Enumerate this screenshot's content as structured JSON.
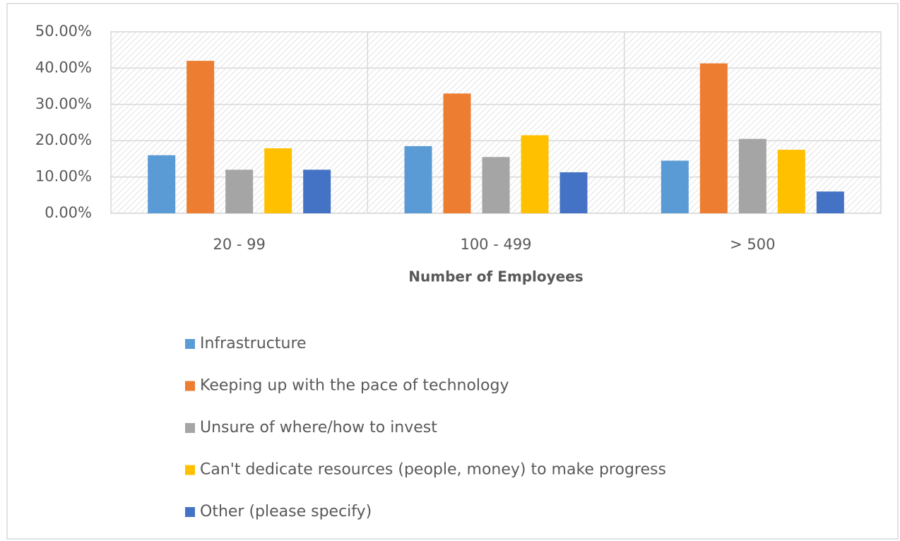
{
  "chart_data": {
    "type": "bar",
    "x_label": "Number of Employees",
    "categories": [
      "20 - 99",
      "100 - 499",
      "> 500"
    ],
    "series": [
      {
        "name": "Infrastructure",
        "color": "#5b9bd5",
        "values": [
          16.0,
          18.5,
          14.5
        ]
      },
      {
        "name": "Keeping up with the pace of technology",
        "color": "#ed7d31",
        "values": [
          42.0,
          33.0,
          41.3
        ]
      },
      {
        "name": "Unsure of where/how to invest",
        "color": "#a5a5a5",
        "values": [
          12.0,
          15.5,
          20.5
        ]
      },
      {
        "name": "Can't dedicate resources (people, money) to make progress",
        "color": "#ffc000",
        "values": [
          17.9,
          21.5,
          17.5
        ]
      },
      {
        "name": "Other (please specify)",
        "color": "#4472c4",
        "values": [
          12.0,
          11.3,
          6.0
        ]
      }
    ],
    "ylim": [
      0,
      50
    ],
    "yticks": [
      {
        "value": 0,
        "label": "0.00%"
      },
      {
        "value": 10,
        "label": "10.00%"
      },
      {
        "value": 20,
        "label": "20.00%"
      },
      {
        "value": 30,
        "label": "30.00%"
      },
      {
        "value": 40,
        "label": "40.00%"
      },
      {
        "value": 50,
        "label": "50.00%"
      }
    ],
    "grid": true,
    "legend": "bottom"
  }
}
